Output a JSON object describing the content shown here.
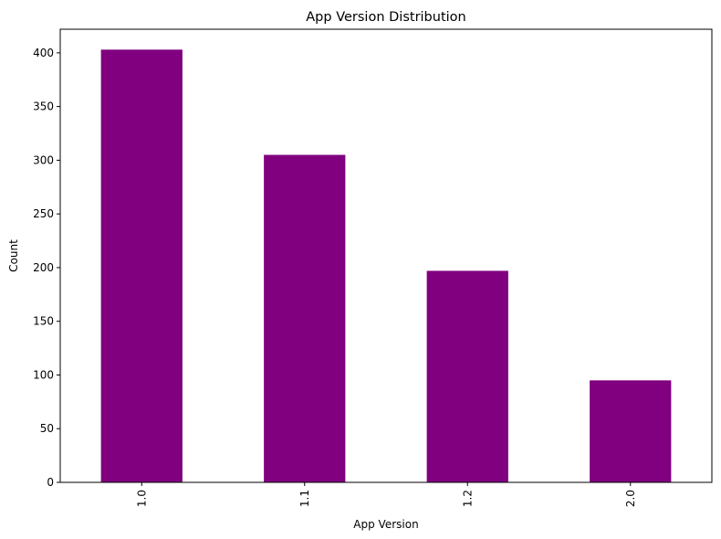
{
  "chart_data": {
    "type": "bar",
    "title": "App Version Distribution",
    "xlabel": "App Version",
    "ylabel": "Count",
    "categories": [
      "1.0",
      "1.1",
      "1.2",
      "2.0"
    ],
    "values": [
      403,
      305,
      197,
      95
    ],
    "ylim": [
      0,
      422
    ],
    "yticks": [
      0,
      50,
      100,
      150,
      200,
      250,
      300,
      350,
      400
    ],
    "bar_color": "#800080",
    "grid": false,
    "legend": "none",
    "xtick_rotation": "vertical"
  }
}
